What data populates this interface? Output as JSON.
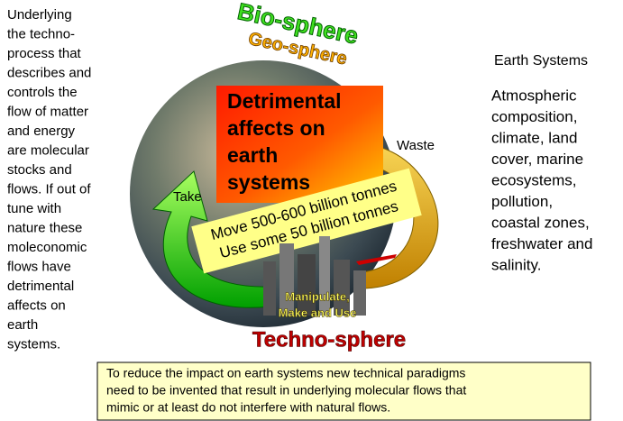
{
  "left_text": {
    "lines": [
      "Underlying",
      "the techno-",
      "process that",
      "describes and",
      "controls the",
      "flow of matter",
      "and energy",
      "are molecular",
      "stocks and",
      "flows. If out of",
      "tune with",
      "nature these",
      "moleconomic",
      "flows have",
      "detrimental",
      "affects on",
      "earth",
      "systems."
    ]
  },
  "diagram": {
    "bio_sphere": "Bio-sphere",
    "geo_sphere": "Geo-sphere",
    "center_box": {
      "lines": [
        "Detrimental",
        "affects on",
        "earth",
        "systems"
      ]
    },
    "waste": "Waste",
    "take": "Take",
    "band": {
      "lines": [
        "Move 500-600 billion tonnes",
        "Use some 50 billion tonnes"
      ]
    },
    "city": {
      "lines": [
        "Manipulate,",
        "Make and Use"
      ]
    },
    "techno_sphere": "Techno-sphere"
  },
  "right_text": {
    "heading": "Earth Systems",
    "lines": [
      "Atmospheric",
      "composition,",
      "climate, land",
      "cover, marine",
      "ecosystems,",
      "pollution,",
      "coastal zones,",
      "freshwater and",
      "salinity."
    ]
  },
  "footer_box": {
    "lines": [
      "To reduce the impact on earth systems new technical paradigms",
      "need to be invented that result in underlying molecular flows that",
      "mimic or at least do not interfere with natural flows."
    ]
  }
}
